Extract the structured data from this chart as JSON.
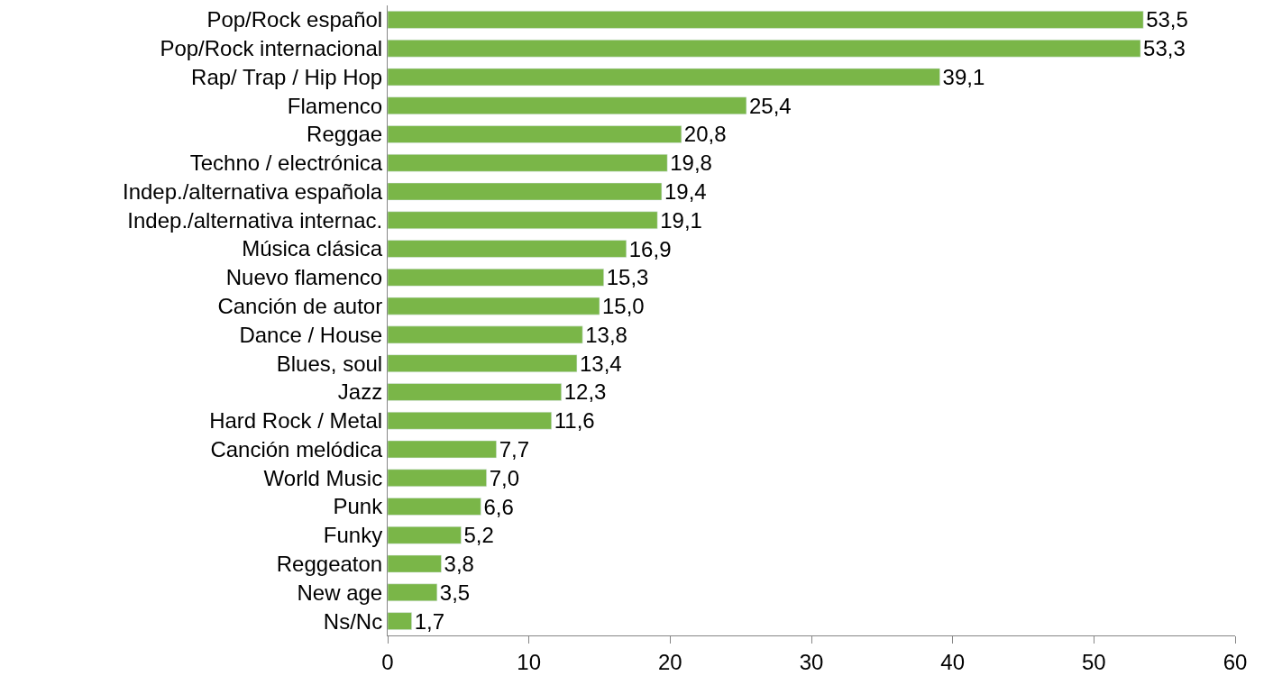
{
  "chart_data": {
    "type": "bar",
    "orientation": "horizontal",
    "categories": [
      "Pop/Rock español",
      "Pop/Rock internacional",
      "Rap/ Trap / Hip Hop",
      "Flamenco",
      "Reggae",
      "Techno / electrónica",
      "Indep./alternativa española",
      "Indep./alternativa internac.",
      "Música clásica",
      "Nuevo flamenco",
      "Canción de autor",
      "Dance / House",
      "Blues, soul",
      "Jazz",
      "Hard Rock / Metal",
      "Canción melódica",
      "World Music",
      "Punk",
      "Funky",
      "Reggeaton",
      "New age",
      "Ns/Nc"
    ],
    "values": [
      53.5,
      53.3,
      39.1,
      25.4,
      20.8,
      19.8,
      19.4,
      19.1,
      16.9,
      15.3,
      15.0,
      13.8,
      13.4,
      12.3,
      11.6,
      7.7,
      7.0,
      6.6,
      5.2,
      3.8,
      3.5,
      1.7
    ],
    "value_labels": [
      "53,5",
      "53,3",
      "39,1",
      "25,4",
      "20,8",
      "19,8",
      "19,4",
      "19,1",
      "16,9",
      "15,3",
      "15,0",
      "13,8",
      "13,4",
      "12,3",
      "11,6",
      "7,7",
      "7,0",
      "6,6",
      "5,2",
      "3,8",
      "3,5",
      "1,7"
    ],
    "color": "#7ab648",
    "xlim": [
      0,
      60
    ],
    "xticks": [
      0,
      10,
      20,
      30,
      40,
      50,
      60
    ]
  }
}
